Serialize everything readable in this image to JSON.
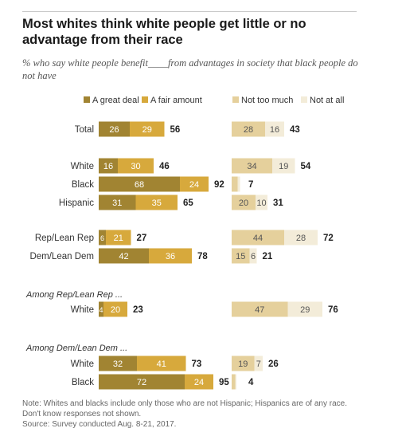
{
  "title": "Most whites think white people get little or no advantage from their race",
  "subtitle": "% who say white people benefit____from advantages in society that black people do not have",
  "colors": {
    "great_deal": "#a18432",
    "fair_amount": "#d7a93c",
    "not_too_much": "#e5d09c",
    "not_at_all": "#f3ecd9"
  },
  "notes": {
    "line1": "Note: Whites and blacks include only those who are not Hispanic; Hispanics are of any race.",
    "line2": "Don't know responses not shown.",
    "line3": "Source: Survey conducted Aug. 8-21, 2017."
  },
  "chart_data": {
    "type": "bar",
    "title": "Most whites think white people get little or no advantage from their race",
    "legend": [
      "A great deal",
      "A fair amount",
      "Not too much",
      "Not at all"
    ],
    "xlim": [
      0,
      100
    ],
    "section_labels": [
      "Among Rep/Lean Rep ...",
      "Among Dem/Lean Dem ..."
    ],
    "rows": [
      {
        "label": "Total",
        "great_deal": 26,
        "fair_amount": 29,
        "net_great_fair": 56,
        "not_too_much": 28,
        "not_at_all": 16,
        "net_not": 43
      },
      {
        "label": "White",
        "great_deal": 16,
        "fair_amount": 30,
        "net_great_fair": 46,
        "not_too_much": 34,
        "not_at_all": 19,
        "net_not": 54
      },
      {
        "label": "Black",
        "great_deal": 68,
        "fair_amount": 24,
        "net_great_fair": 92,
        "not_too_much": 5,
        "not_at_all": 2,
        "net_not": 7
      },
      {
        "label": "Hispanic",
        "great_deal": 31,
        "fair_amount": 35,
        "net_great_fair": 65,
        "not_too_much": 20,
        "not_at_all": 10,
        "net_not": 31
      },
      {
        "label": "Rep/Lean Rep",
        "great_deal": 6,
        "fair_amount": 21,
        "net_great_fair": 27,
        "not_too_much": 44,
        "not_at_all": 28,
        "net_not": 72
      },
      {
        "label": "Dem/Lean Dem",
        "great_deal": 42,
        "fair_amount": 36,
        "net_great_fair": 78,
        "not_too_much": 15,
        "not_at_all": 6,
        "net_not": 21
      },
      {
        "label": "White",
        "great_deal": 4,
        "fair_amount": 20,
        "net_great_fair": 23,
        "not_too_much": 47,
        "not_at_all": 29,
        "net_not": 76
      },
      {
        "label": "White",
        "great_deal": 32,
        "fair_amount": 41,
        "net_great_fair": 73,
        "not_too_much": 19,
        "not_at_all": 7,
        "net_not": 26
      },
      {
        "label": "Black",
        "great_deal": 72,
        "fair_amount": 24,
        "net_great_fair": 95,
        "not_too_much": 3,
        "not_at_all": 1,
        "net_not": 4
      }
    ]
  }
}
